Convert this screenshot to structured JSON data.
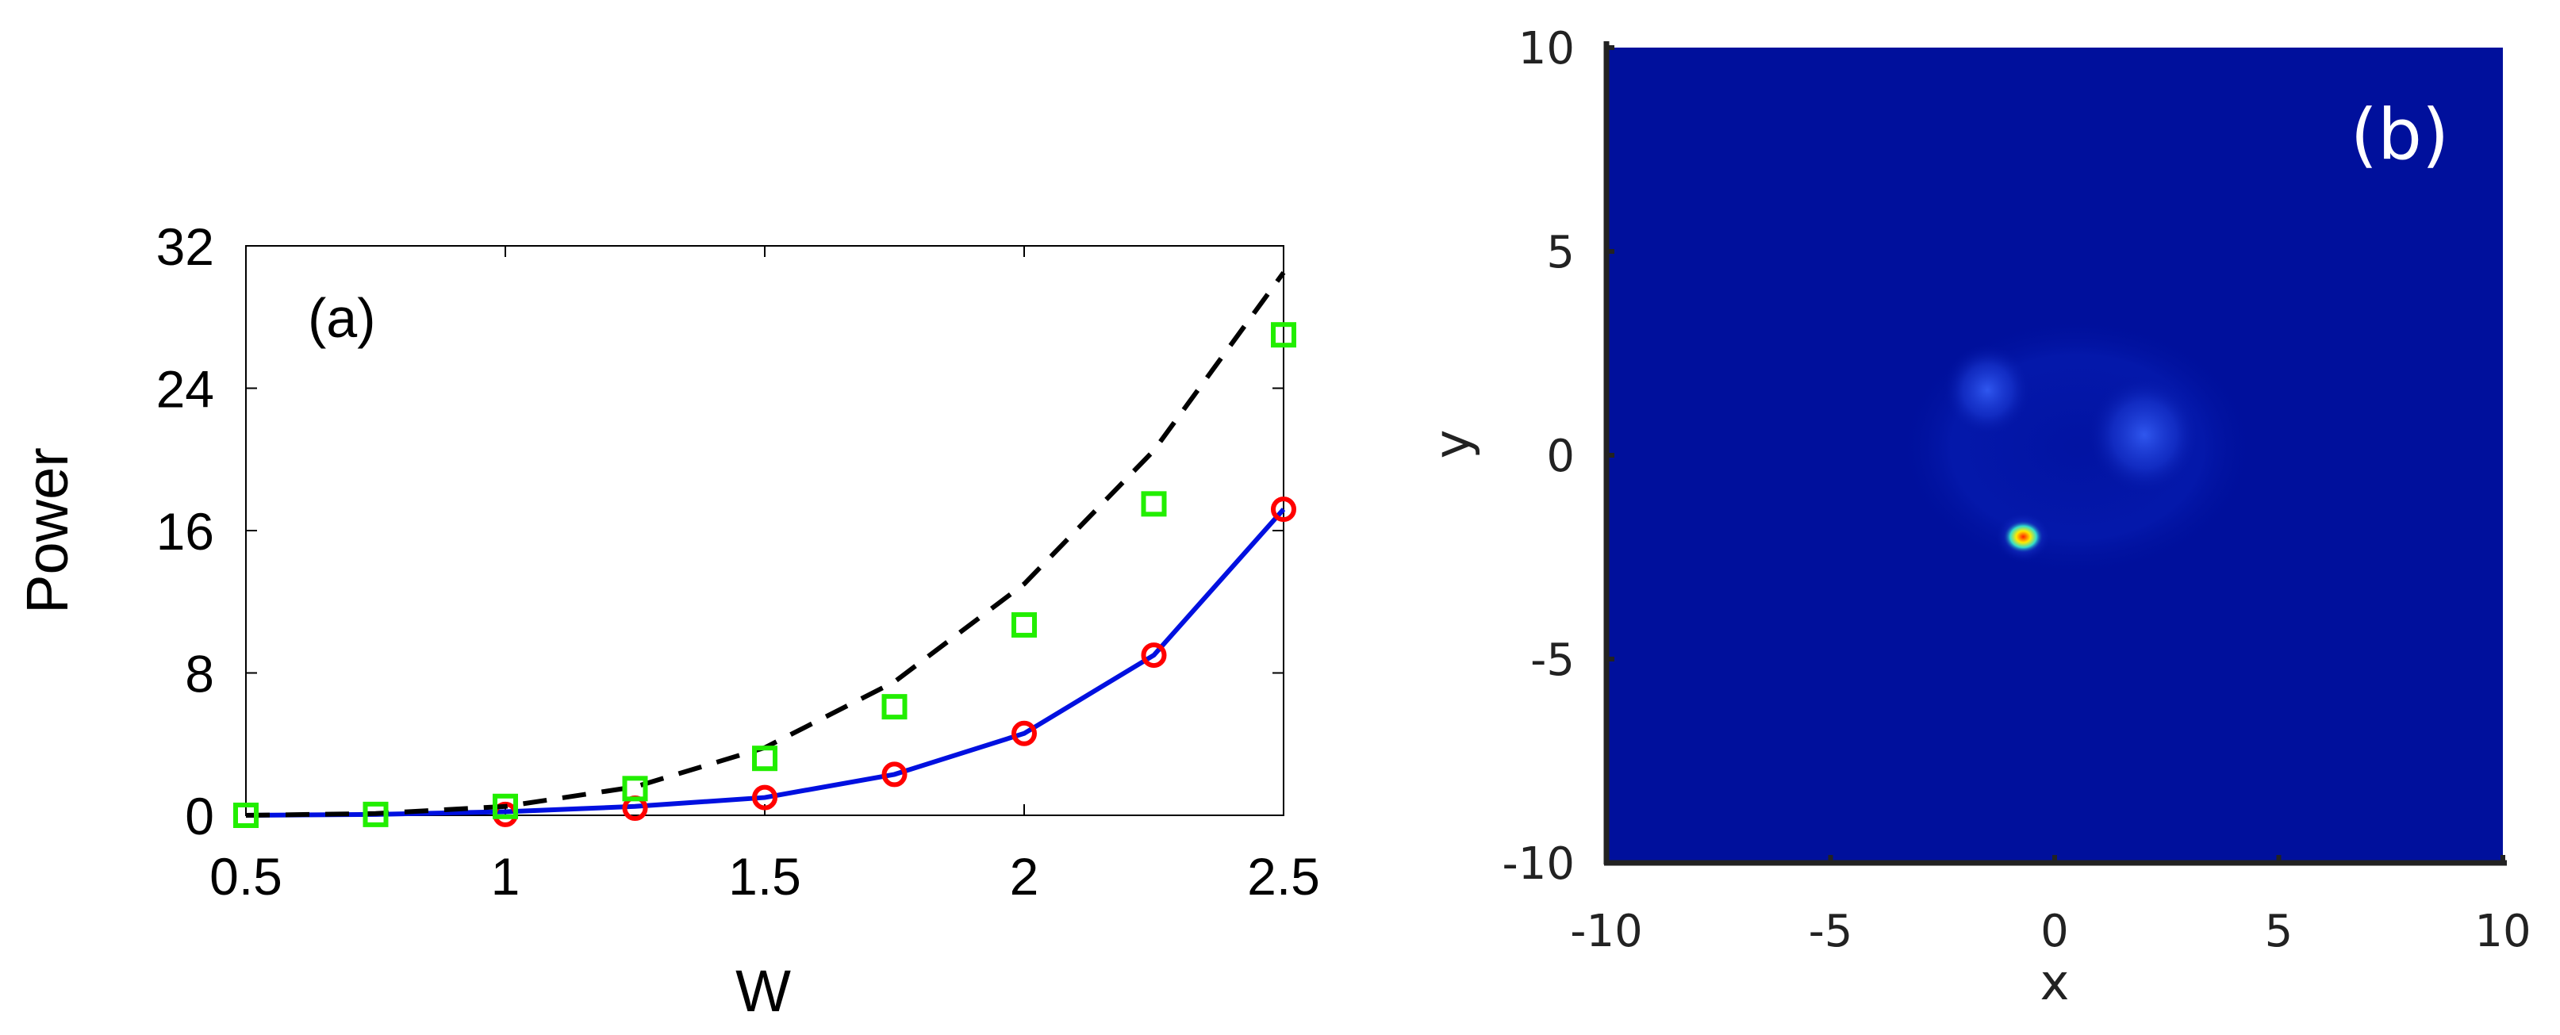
{
  "chart_data": [
    {
      "type": "line",
      "panel_label": "(a)",
      "xlabel": "W",
      "ylabel": "Power",
      "xlim": [
        0.5,
        2.5
      ],
      "ylim": [
        0,
        32
      ],
      "xticks": [
        "0.5",
        "1",
        "1.5",
        "2",
        "2.5"
      ],
      "xtick_values": [
        0.5,
        1,
        1.5,
        2,
        2.5
      ],
      "yticks": [
        "0",
        "8",
        "16",
        "24",
        "32"
      ],
      "ytick_values": [
        0,
        8,
        16,
        24,
        32
      ],
      "series": [
        {
          "style": "solid-line",
          "color": "#0010e0",
          "x": [
            0.5,
            0.75,
            1.0,
            1.25,
            1.5,
            1.75,
            2.0,
            2.25,
            2.5
          ],
          "y": [
            0.0,
            0.05,
            0.2,
            0.5,
            1.0,
            2.3,
            4.6,
            9.0,
            17.2
          ]
        },
        {
          "style": "circle-markers",
          "color": "#ff0000",
          "x": [
            1.0,
            1.25,
            1.5,
            1.75,
            2.0,
            2.25,
            2.5
          ],
          "y": [
            0.05,
            0.4,
            1.0,
            2.3,
            4.6,
            9.0,
            17.2
          ]
        },
        {
          "style": "dashed-line",
          "color": "#000000",
          "x": [
            0.5,
            0.75,
            1.0,
            1.25,
            1.5,
            1.75,
            2.0,
            2.25,
            2.5
          ],
          "y": [
            0.0,
            0.1,
            0.5,
            1.6,
            3.8,
            7.5,
            13.0,
            20.5,
            30.5
          ]
        },
        {
          "style": "square-markers",
          "color": "#22ee00",
          "x": [
            0.5,
            0.75,
            1.0,
            1.25,
            1.5,
            1.75,
            2.0,
            2.25,
            2.5
          ],
          "y": [
            0.0,
            0.05,
            0.5,
            1.5,
            3.2,
            6.1,
            10.7,
            17.5,
            27.0
          ]
        }
      ]
    },
    {
      "type": "heatmap",
      "panel_label": "(b)",
      "xlabel": "x",
      "ylabel": "y",
      "xlim": [
        -10,
        10
      ],
      "ylim": [
        -10,
        10
      ],
      "xticks": [
        "-10",
        "-5",
        "0",
        "5",
        "10"
      ],
      "xtick_values": [
        -10,
        -5,
        0,
        5,
        10
      ],
      "yticks": [
        "-10",
        "-5",
        "0",
        "5",
        "10"
      ],
      "ytick_values": [
        -10,
        -5,
        0,
        5,
        10
      ],
      "colors": {
        "background": "#00109c",
        "glow": "#2244e0",
        "bright": "#3a66ff",
        "peak": "#ffea00",
        "core": "#ff2000"
      },
      "features": [
        {
          "kind": "ring-halo",
          "x": 0.5,
          "y": 0.2,
          "rx": 4.0,
          "ry": 3.2,
          "intensity": 0.25
        },
        {
          "kind": "blob",
          "x": -1.5,
          "y": 1.6,
          "r": 1.0,
          "intensity": 0.55
        },
        {
          "kind": "blob",
          "x": 2.0,
          "y": 0.5,
          "r": 1.3,
          "intensity": 0.55
        },
        {
          "kind": "hot-spot",
          "x": -0.7,
          "y": -2.0,
          "r": 0.45,
          "intensity": 1.0
        }
      ]
    }
  ]
}
